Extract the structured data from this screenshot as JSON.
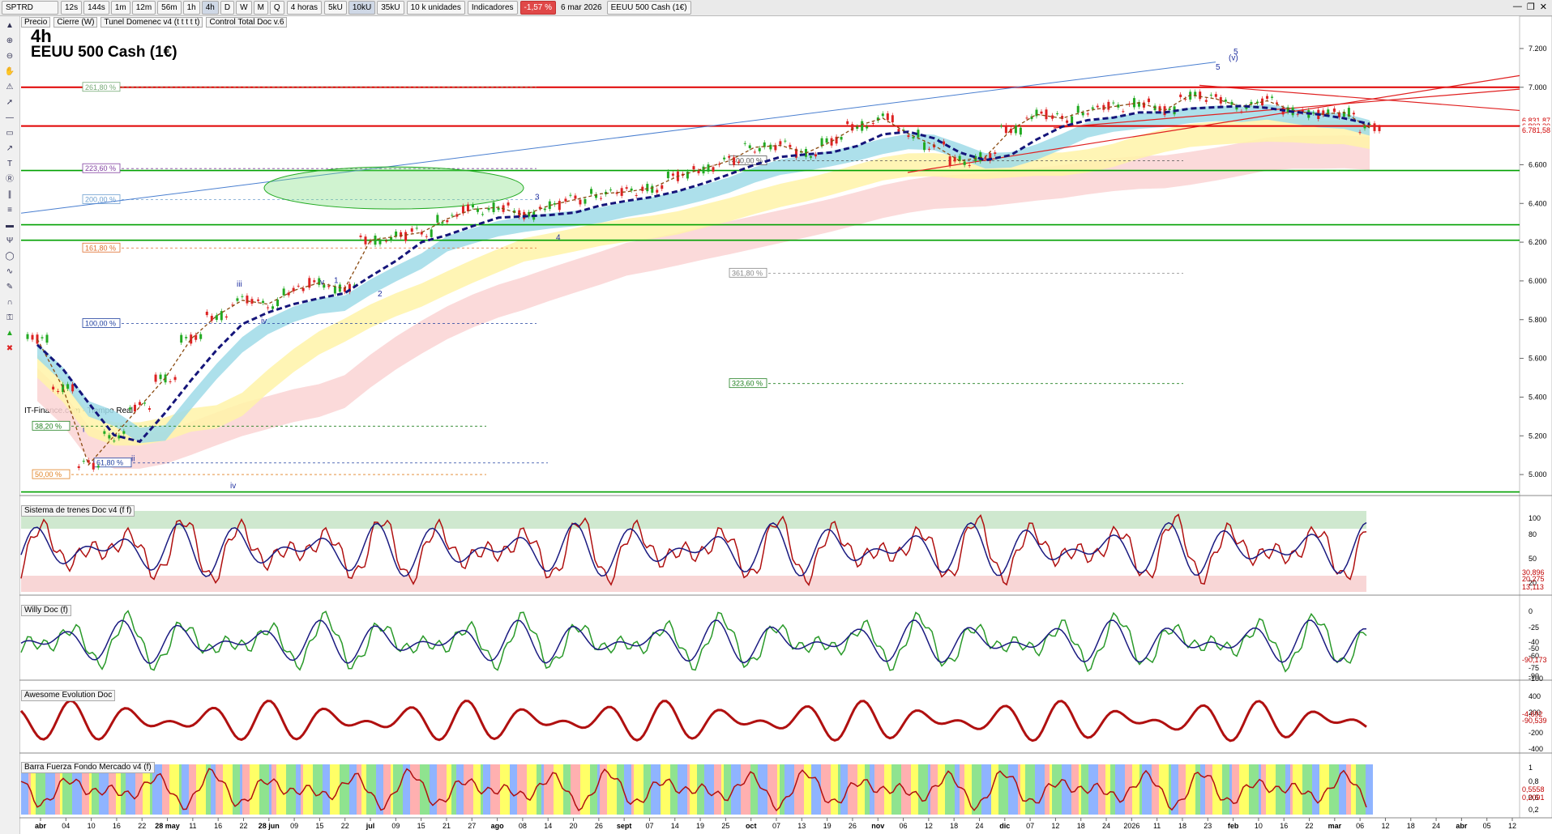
{
  "toolbar": {
    "symbol": "SPTRD",
    "timeframes": [
      "12s",
      "144s",
      "1m",
      "12m",
      "56m",
      "1h",
      "4h",
      "D",
      "W",
      "M",
      "Q"
    ],
    "selected_timeframe": "4h",
    "period_select": "4 horas",
    "units": [
      "5kU",
      "10kU",
      "35kU"
    ],
    "selected_unit": "10kU",
    "units_select": "10 k unidades",
    "indicators_label": "Indicadores",
    "change_pct": "-1,57 %",
    "date": "6 mar 2026",
    "instrument": "EEUU 500 Cash (1€)"
  },
  "header": {
    "items": [
      "Precio",
      "Cierre (W)",
      "Tunel Domenec v4 (t t t t t)",
      "Control Total Doc v.6"
    ]
  },
  "chart_data": {
    "type": "line",
    "timeframe_label": "4h",
    "title": "EEUU 500 Cash (1€)",
    "source": "IT-Finance.com - Tiempo Real",
    "price_axis": {
      "ticks": [
        "7.200",
        "7.000",
        "6.800",
        "6.600",
        "6.400",
        "6.200",
        "6.000",
        "5.800",
        "5.600",
        "5.400",
        "5.200",
        "5.000"
      ],
      "tick_values": [
        7200,
        7000,
        6800,
        6600,
        6400,
        6200,
        6000,
        5800,
        5600,
        5400,
        5200,
        5000
      ],
      "ylim": [
        4900,
        7300
      ],
      "last_price_labels": [
        "6.831,87",
        "6.803,30",
        "6.781,58"
      ]
    },
    "x_axis": {
      "labels": [
        "abr",
        "04",
        "10",
        "16",
        "22",
        "28 may",
        "11",
        "16",
        "22",
        "28 jun",
        "09",
        "15",
        "22",
        "jul",
        "09",
        "15",
        "21",
        "27",
        "ago",
        "08",
        "14",
        "20",
        "26",
        "sept",
        "07",
        "14",
        "19",
        "25",
        "oct",
        "07",
        "13",
        "19",
        "26",
        "nov",
        "06",
        "12",
        "18",
        "24",
        "dic",
        "07",
        "12",
        "18",
        "24",
        "2026",
        "11",
        "18",
        "23",
        "feb",
        "10",
        "16",
        "22",
        "mar",
        "06",
        "12",
        "18",
        "24",
        "abr",
        "05",
        "12"
      ]
    },
    "price_series": {
      "name": "Precio",
      "x": [
        "abr",
        "04",
        "10",
        "16",
        "22",
        "28 may",
        "11",
        "16",
        "22",
        "28 jun",
        "09",
        "15",
        "22",
        "jul",
        "09",
        "15",
        "21",
        "27",
        "ago",
        "08",
        "14",
        "20",
        "26",
        "sept",
        "07",
        "14",
        "19",
        "25",
        "oct",
        "07",
        "13",
        "19",
        "26",
        "nov",
        "06",
        "12",
        "18",
        "24",
        "dic",
        "07",
        "12",
        "18",
        "24",
        "2026",
        "11",
        "18",
        "23",
        "feb",
        "10",
        "16",
        "22",
        "mar",
        "06"
      ],
      "values": [
        5700,
        5450,
        5050,
        5200,
        5350,
        5500,
        5700,
        5820,
        5900,
        5880,
        5950,
        5990,
        5960,
        6210,
        6230,
        6250,
        6320,
        6370,
        6380,
        6340,
        6390,
        6420,
        6450,
        6460,
        6480,
        6540,
        6580,
        6620,
        6690,
        6700,
        6660,
        6720,
        6800,
        6840,
        6760,
        6700,
        6620,
        6640,
        6780,
        6860,
        6840,
        6880,
        6900,
        6920,
        6880,
        6960,
        6940,
        6900,
        6930,
        6880,
        6860,
        6870,
        6790
      ]
    },
    "fib_levels": [
      {
        "label": "261,80 %",
        "value": 7000
      },
      {
        "label": "223,60 %",
        "value": 6580
      },
      {
        "label": "200,00 %",
        "value": 6420
      },
      {
        "label": "161,80 %",
        "value": 6170
      },
      {
        "label": "400,00 %",
        "value": 6620
      },
      {
        "label": "361,80 %",
        "value": 6040
      },
      {
        "label": "100,00 %",
        "value": 5780
      },
      {
        "label": "323,60 %",
        "value": 5470
      },
      {
        "label": "38,20 %",
        "value": 5250
      },
      {
        "label": "61,80 %",
        "value": 5060
      },
      {
        "label": "50,00 %",
        "value": 5000
      }
    ],
    "horizontal_lines": [
      {
        "value": 7000,
        "color": "#e00000"
      },
      {
        "value": 6800,
        "color": "#e00000"
      },
      {
        "value": 6570,
        "color": "#00a000"
      },
      {
        "value": 6290,
        "color": "#00a000"
      },
      {
        "value": 6210,
        "color": "#00a000"
      },
      {
        "value": 4910,
        "color": "#00a000"
      }
    ],
    "wave_labels": [
      "5",
      "(v)",
      "5",
      "3",
      "4",
      "1",
      "v",
      "2",
      "iii",
      "iv",
      "i",
      "ii",
      "iv"
    ],
    "panels": [
      {
        "title": "Sistema de trenes Doc v4 (f f)",
        "ticks": [
          "100",
          "80",
          "50",
          "20"
        ],
        "value_labels": [
          "30,896",
          "20,275",
          "13,113"
        ]
      },
      {
        "title": "Willy Doc (f)",
        "ticks": [
          "0",
          "-25",
          "-40",
          "-50",
          "-60",
          "-75",
          "-90",
          "-100"
        ],
        "value_labels": [
          "-90,173"
        ]
      },
      {
        "title": "Awesome Evolution Doc",
        "ticks": [
          "400",
          "200",
          "-200",
          "-400"
        ],
        "value_labels": [
          "-4,692",
          "-90,539"
        ]
      },
      {
        "title": "Barra Fuerza Fondo Mercado v4 (f)",
        "ticks": [
          "1",
          "0,8",
          "0,6",
          "0,2"
        ],
        "value_labels": [
          "0,5558",
          "0,2091"
        ]
      }
    ]
  },
  "colors": {
    "up_candle": "#22aa22",
    "down_candle": "#dd2222",
    "tunnel_blue": "#9fdbe8",
    "tunnel_yellow": "#fff3a8",
    "tunnel_pink": "#fad3d3",
    "navy": "#15157a"
  }
}
